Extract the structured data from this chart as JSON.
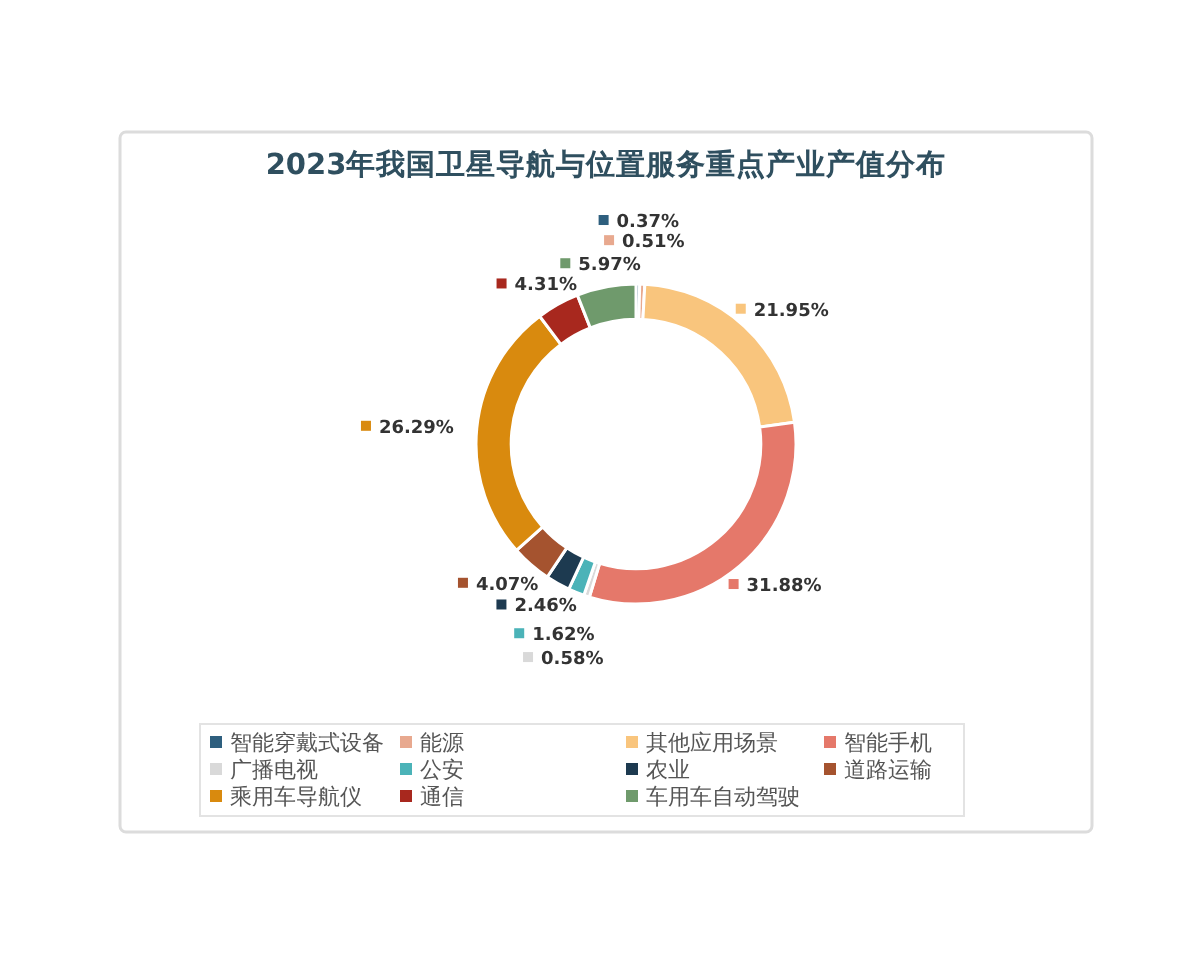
{
  "chart_data": {
    "type": "donut",
    "title": "2023年我国卫星导航与位置服务重点产业产值分布",
    "categories": [
      "智能穿戴式设备",
      "能源",
      "其他应用场景",
      "智能手机",
      "广播电视",
      "公安",
      "农业",
      "道路运输",
      "乘用车导航仪",
      "通信",
      "车用车自动驾驶"
    ],
    "values": [
      0.37,
      0.51,
      21.95,
      31.88,
      0.58,
      1.62,
      2.46,
      4.07,
      26.29,
      4.31,
      5.97
    ],
    "value_labels": [
      "0.37%",
      "0.51%",
      "21.95%",
      "31.88%",
      "0.58%",
      "1.62%",
      "2.46%",
      "4.07%",
      "26.29%",
      "4.31%",
      "5.97%"
    ],
    "colors": [
      "#2e5f7e",
      "#e8a98f",
      "#f9c57d",
      "#e5786a",
      "#d9d9d9",
      "#4bb3b8",
      "#1d3a50",
      "#a5532f",
      "#d98a0e",
      "#a8281e",
      "#6f9a6c"
    ],
    "legend": "bottom"
  }
}
